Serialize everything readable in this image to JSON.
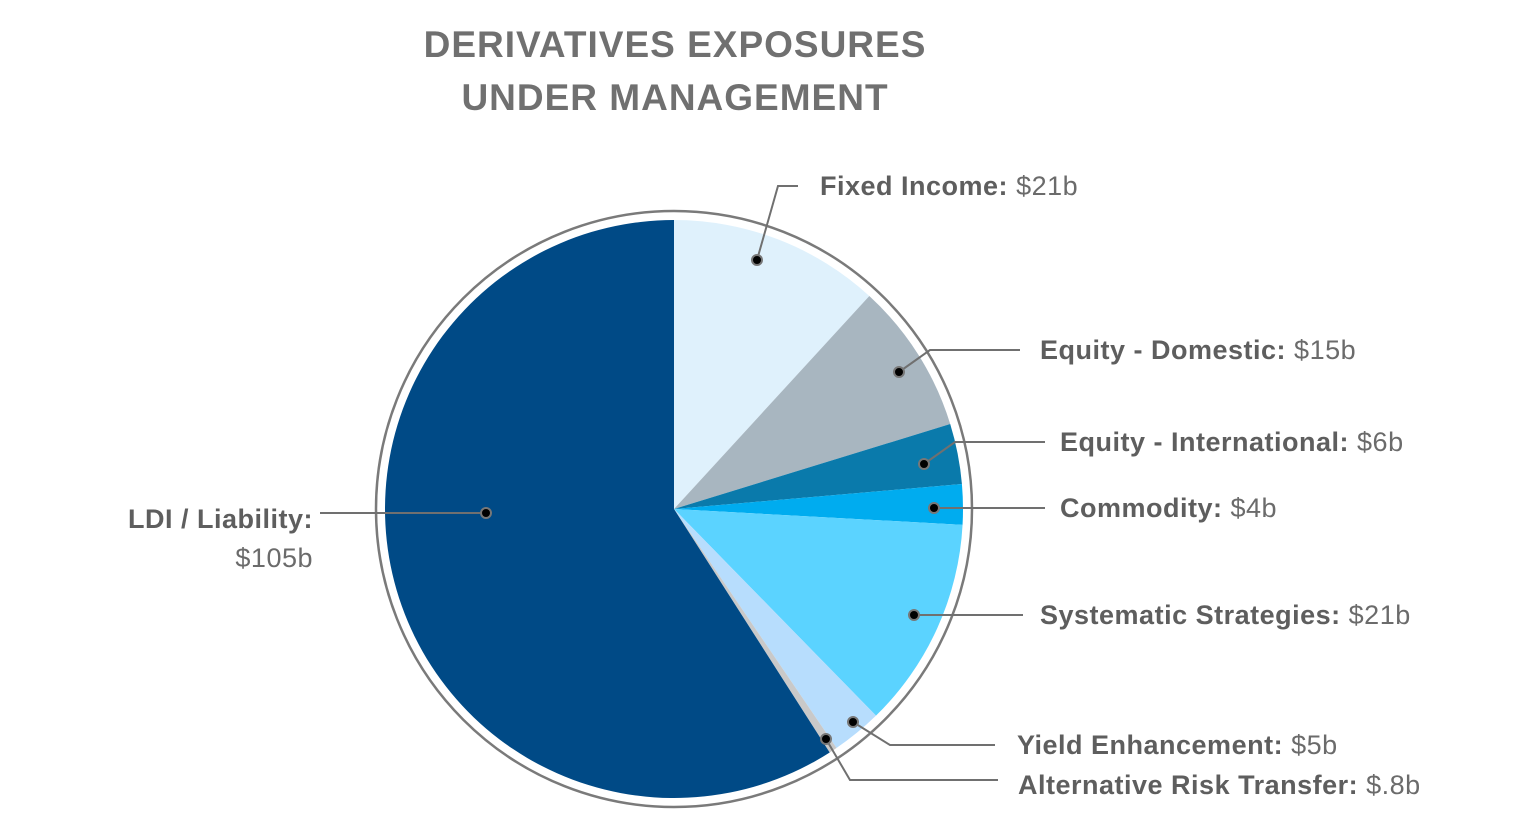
{
  "chart_data": {
    "type": "pie",
    "title": [
      "DERIVATIVES EXPOSURES",
      "UNDER MANAGEMENT"
    ],
    "unit": "$b",
    "start": "top",
    "direction": "clockwise",
    "slices": [
      {
        "name": "Fixed Income:",
        "value_label": "$21b",
        "value": 21,
        "color": "#dff1fc"
      },
      {
        "name": "Equity - Domestic:",
        "value_label": "$15b",
        "value": 15,
        "color": "#a8b6c0"
      },
      {
        "name": "Equity - International:",
        "value_label": "$6b",
        "value": 6,
        "color": "#0a7aab"
      },
      {
        "name": "Commodity:",
        "value_label": "$4b",
        "value": 4,
        "color": "#00acef"
      },
      {
        "name": "Systematic Strategies:",
        "value_label": "$21b",
        "value": 21,
        "color": "#5bd3ff"
      },
      {
        "name": "Yield Enhancement:",
        "value_label": "$5b",
        "value": 5,
        "color": "#b7ddfd"
      },
      {
        "name": "Alternative Risk Transfer:",
        "value_label": "$.8b",
        "value": 0.8,
        "color": "#c9c9c9"
      },
      {
        "name": "LDI / Liability:",
        "value_label": "$105b",
        "value": 105,
        "color": "#004a86"
      }
    ]
  }
}
